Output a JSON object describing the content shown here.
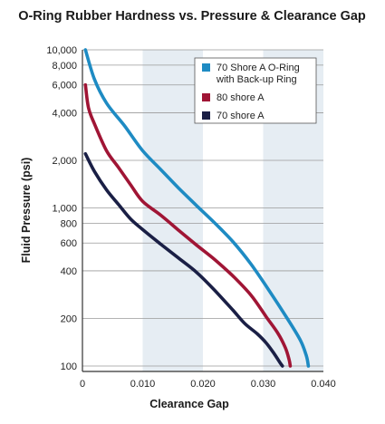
{
  "chart_data": {
    "type": "line",
    "title": "O-Ring Rubber Hardness vs. Pressure & Clearance Gap",
    "xlabel": "Clearance Gap",
    "ylabel": "Fluid Pressure (psi)",
    "xlim": [
      0,
      0.04
    ],
    "ylim": [
      95,
      10000
    ],
    "y_scale": "log",
    "grid": "horizontal lines at y ticks; alternating vertical shaded bands",
    "x_ticks": [
      {
        "value": 0,
        "label": "0"
      },
      {
        "value": 0.01,
        "label": "0.010"
      },
      {
        "value": 0.02,
        "label": "0.020"
      },
      {
        "value": 0.03,
        "label": "0.030"
      },
      {
        "value": 0.04,
        "label": "0.040"
      }
    ],
    "y_ticks": [
      {
        "value": 100,
        "label": "100"
      },
      {
        "value": 200,
        "label": "200"
      },
      {
        "value": 400,
        "label": "400"
      },
      {
        "value": 600,
        "label": "600"
      },
      {
        "value": 800,
        "label": "800"
      },
      {
        "value": 1000,
        "label": "1,000"
      },
      {
        "value": 2000,
        "label": "2,000"
      },
      {
        "value": 4000,
        "label": "4,000"
      },
      {
        "value": 6000,
        "label": "6,000"
      },
      {
        "value": 8000,
        "label": "8,000"
      },
      {
        "value": 10000,
        "label": "10,000"
      }
    ],
    "shaded_bands": [
      [
        0.01,
        0.02
      ],
      [
        0.03,
        0.04
      ]
    ],
    "legend_position": "top-right",
    "series": [
      {
        "name": "70 Shore A O-Ring with Back-up Ring",
        "label_lines": [
          "70 Shore A O-Ring",
          "with Back-up Ring"
        ],
        "color": "#1e8bc3",
        "x": [
          0.0005,
          0.002,
          0.004,
          0.007,
          0.01,
          0.013,
          0.016,
          0.019,
          0.022,
          0.025,
          0.028,
          0.031,
          0.034,
          0.0362,
          0.0372,
          0.0375
        ],
        "y": [
          10000,
          6500,
          4600,
          3300,
          2300,
          1750,
          1330,
          1030,
          800,
          610,
          440,
          300,
          200,
          145,
          115,
          100
        ]
      },
      {
        "name": "80 shore A",
        "label_lines": [
          "80 shore A"
        ],
        "color": "#a01535",
        "x": [
          0.0005,
          0.001,
          0.002,
          0.004,
          0.006,
          0.008,
          0.01,
          0.013,
          0.016,
          0.019,
          0.022,
          0.025,
          0.028,
          0.0305,
          0.0325,
          0.0337,
          0.0343,
          0.0345
        ],
        "y": [
          6000,
          4300,
          3400,
          2300,
          1800,
          1400,
          1100,
          900,
          720,
          580,
          470,
          370,
          280,
          205,
          160,
          130,
          110,
          100
        ]
      },
      {
        "name": "70 shore A",
        "label_lines": [
          "70 shore A"
        ],
        "color": "#1a1f45",
        "x": [
          0.0005,
          0.002,
          0.004,
          0.006,
          0.008,
          0.01,
          0.013,
          0.016,
          0.019,
          0.022,
          0.025,
          0.027,
          0.029,
          0.0305,
          0.0318,
          0.0328,
          0.0332
        ],
        "y": [
          2200,
          1700,
          1300,
          1050,
          850,
          730,
          590,
          480,
          390,
          300,
          225,
          185,
          160,
          140,
          120,
          105,
          100
        ]
      }
    ]
  }
}
